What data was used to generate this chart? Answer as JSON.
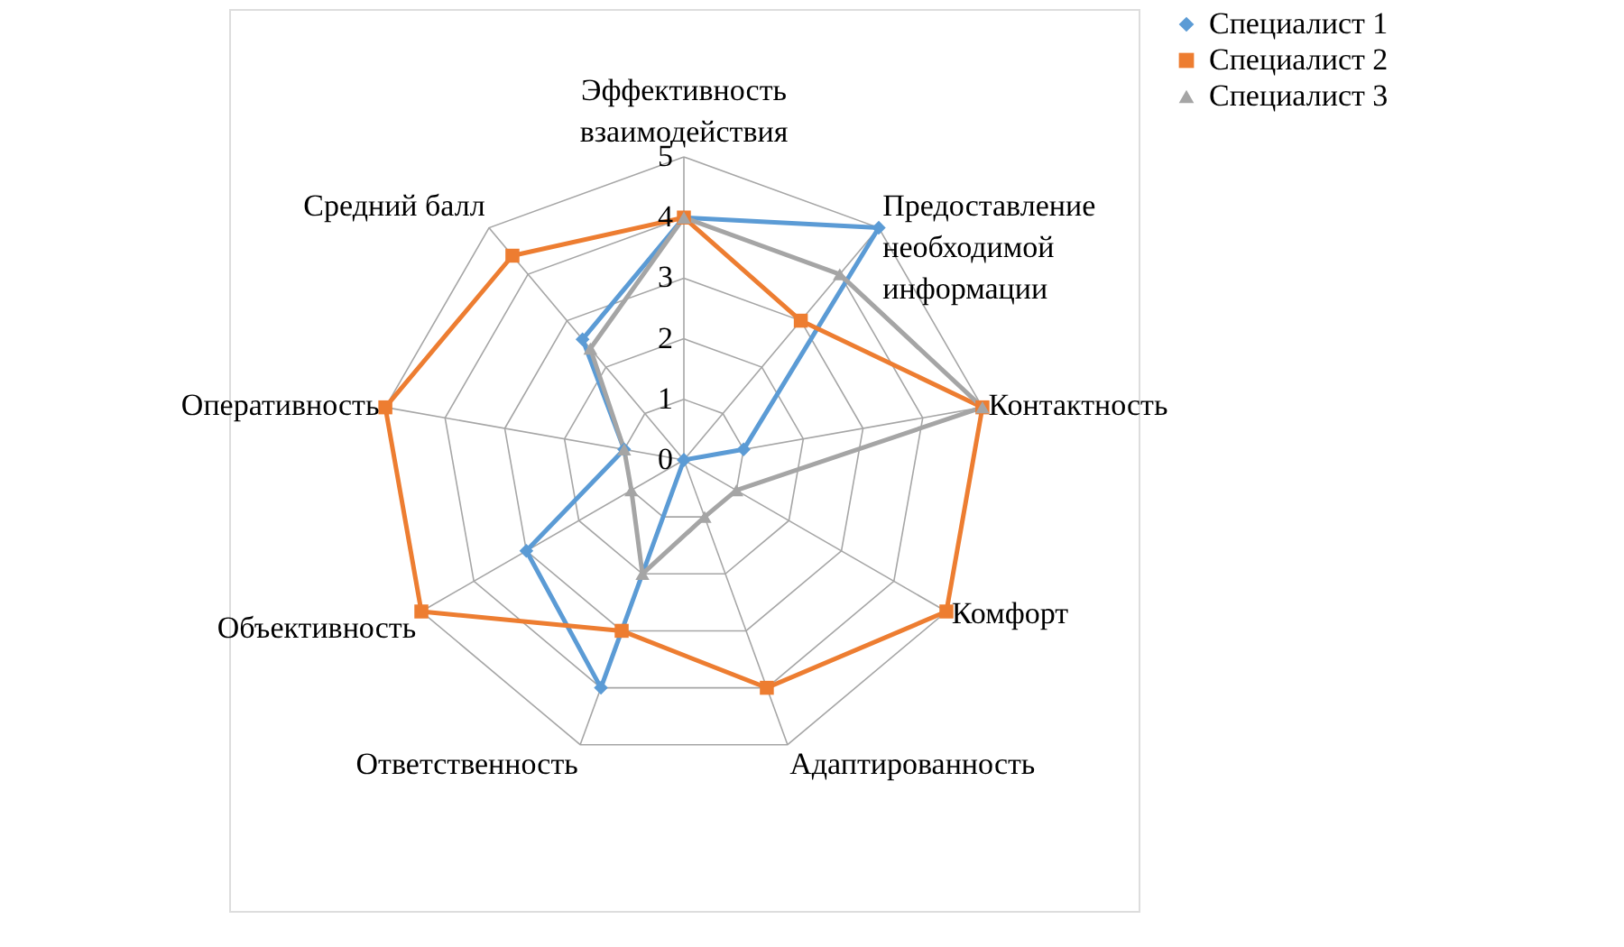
{
  "chart_data": {
    "type": "radar",
    "categories": [
      "Эффективность взаимодействия",
      "Предоставление необходимой информации",
      "Контактность",
      "Комфорт",
      "Адаптированность",
      "Ответственность",
      "Объективность",
      "Оперативность",
      "Средний балл"
    ],
    "series": [
      {
        "name": "Специалист 1",
        "color": "#5b9bd5",
        "marker": "diamond",
        "values": [
          4,
          5,
          1,
          0,
          0,
          4,
          3,
          1,
          2.6
        ]
      },
      {
        "name": "Специалист 2",
        "color": "#ed7d31",
        "marker": "square",
        "values": [
          4,
          3,
          5,
          5,
          4,
          3,
          5,
          5,
          4.4
        ]
      },
      {
        "name": "Специалист 3",
        "color": "#a5a5a5",
        "marker": "triangle",
        "values": [
          4,
          4,
          5,
          1,
          1,
          2,
          1,
          1,
          2.4
        ]
      }
    ],
    "ylim": [
      0,
      5
    ],
    "yticks": [
      0,
      1,
      2,
      3,
      4,
      5
    ],
    "grid": true,
    "legend": "right"
  }
}
